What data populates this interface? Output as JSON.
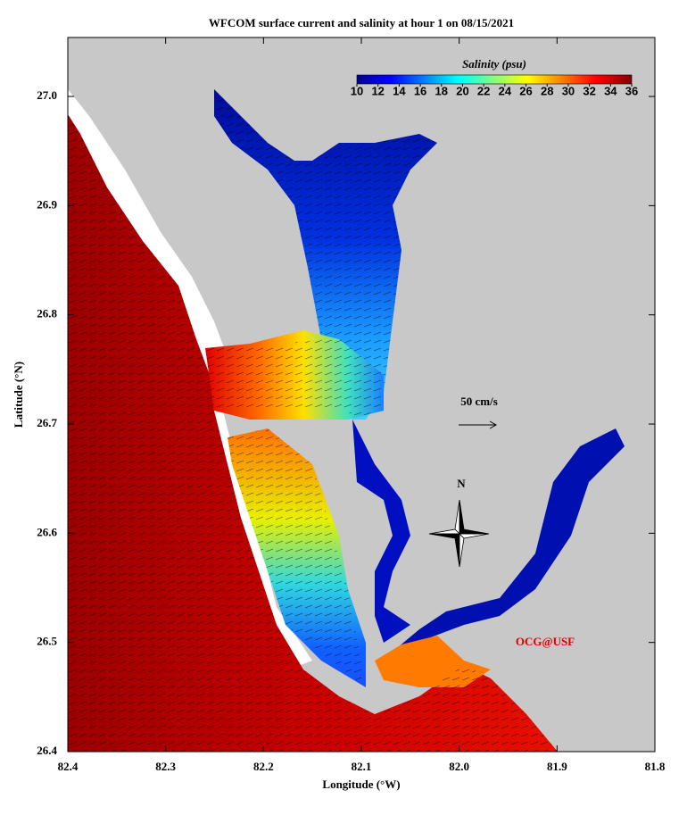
{
  "map": {
    "title": "WFCOM surface current and salinity at hour 1 on 08/15/2021",
    "xlabel": "Longitude (°W)",
    "ylabel": "Latitude (°N)",
    "xlim": [
      82.4,
      81.8
    ],
    "xticks": [
      82.4,
      82.3,
      82.2,
      82.1,
      {
        "value": 82,
        "label": "82.0"
      },
      81.9,
      81.8
    ],
    "ylim": [
      26.4,
      27.054
    ],
    "yticks": [
      26.4,
      26.5,
      26.6,
      26.7,
      26.8,
      26.9,
      {
        "value": 27,
        "label": "27.0"
      }
    ],
    "colorbar": {
      "label": "Salinity (psu)",
      "lim": [
        10,
        36
      ],
      "ticks": [
        10,
        12,
        14,
        16,
        18,
        20,
        22,
        24,
        26,
        28,
        30,
        32,
        34,
        36
      ]
    },
    "vector_scale": "50 cm/s",
    "compass": "N",
    "credit": "OCG@USF"
  }
}
